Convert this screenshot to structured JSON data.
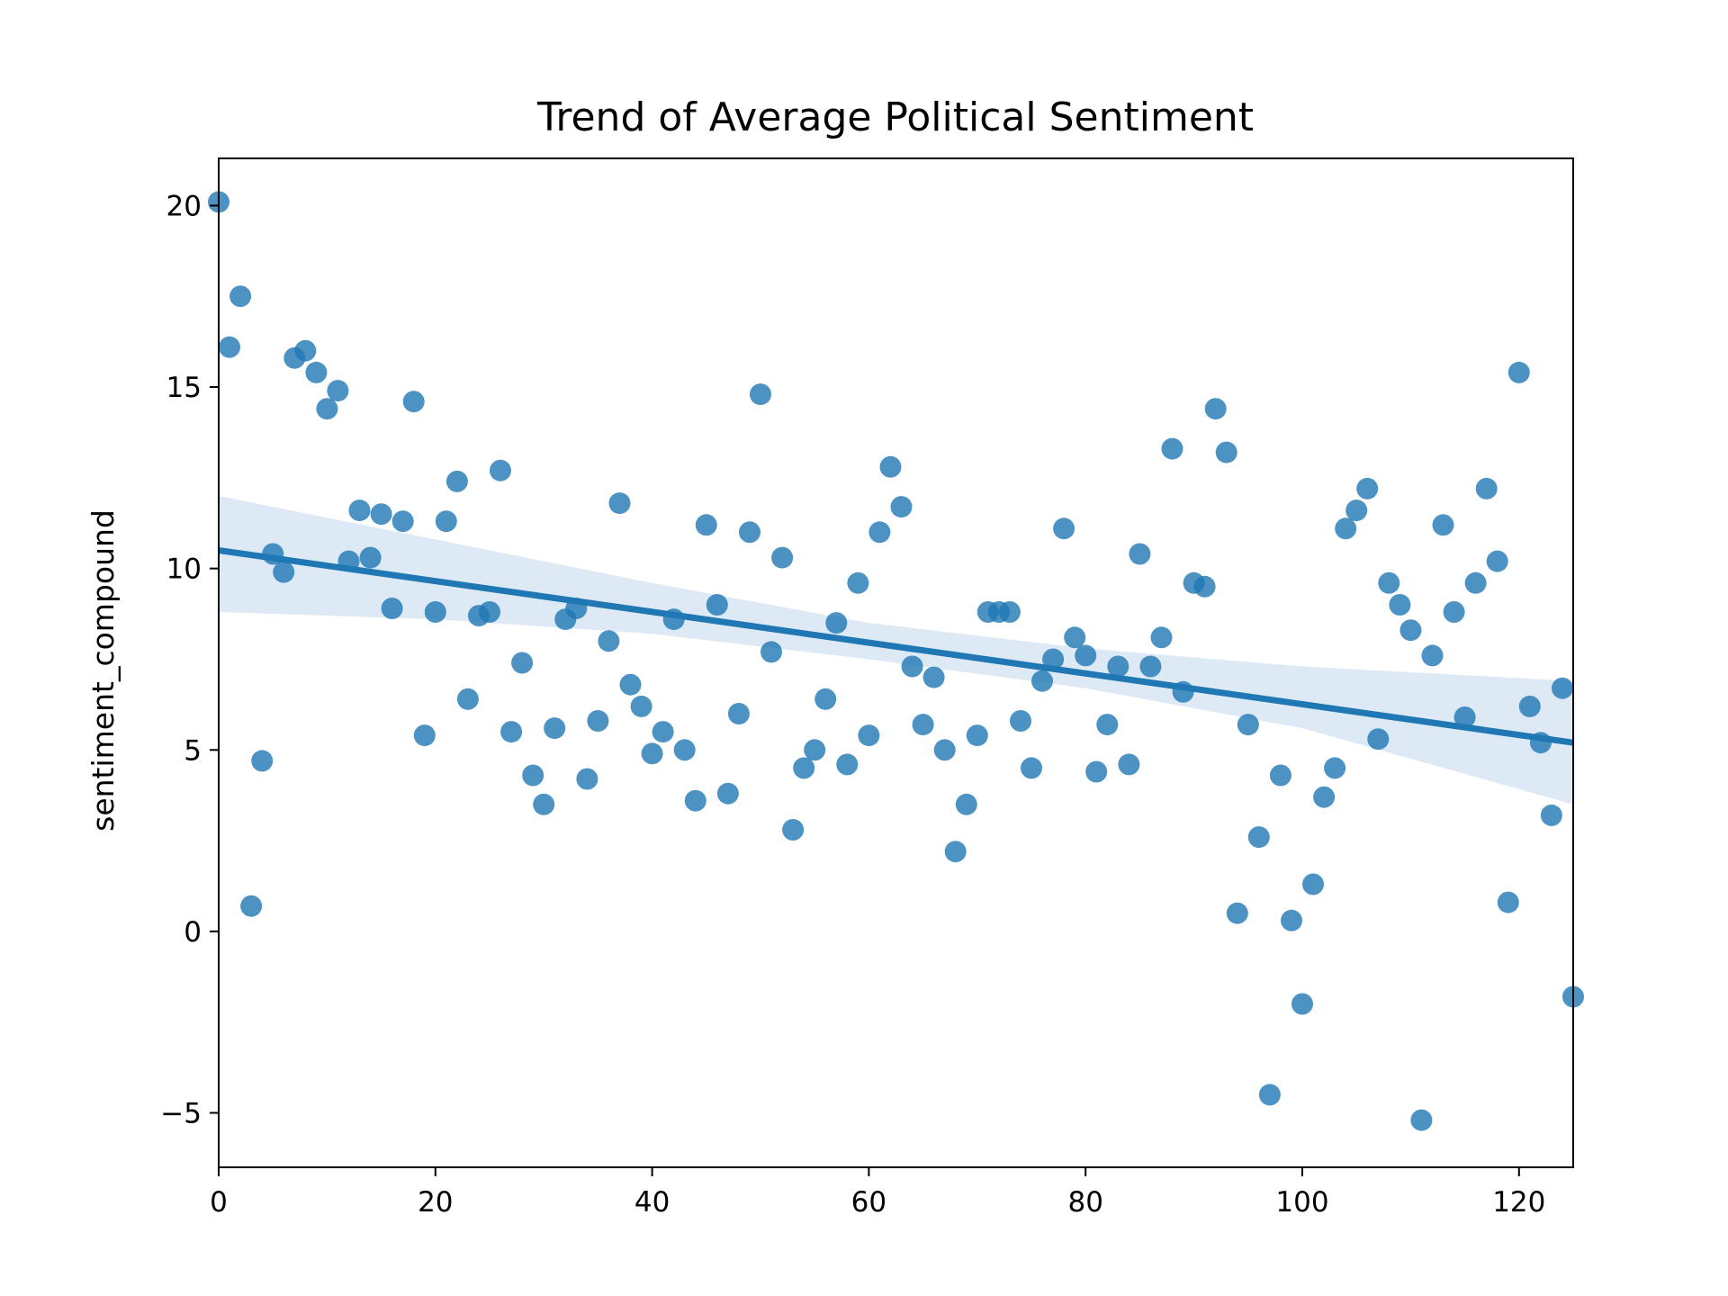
{
  "chart_data": {
    "type": "scatter",
    "title": "Trend of Average Political Sentiment",
    "xlabel": "",
    "ylabel": "sentiment_compound",
    "xlim": [
      0,
      125
    ],
    "ylim": [
      -6.5,
      21.3
    ],
    "xticks": [
      0,
      20,
      40,
      60,
      80,
      100,
      120
    ],
    "yticks": [
      -5,
      0,
      5,
      10,
      15,
      20
    ],
    "ytick_labels": [
      "−5",
      "0",
      "5",
      "10",
      "15",
      "20"
    ],
    "grid": false,
    "legend": "none",
    "colors": {
      "points": "#1f77b4",
      "line": "#1f77b4",
      "band": "#c6dbef"
    },
    "regression": {
      "x": [
        0,
        125
      ],
      "y": [
        10.5,
        5.2
      ]
    },
    "confidence_band": {
      "x": [
        0,
        20,
        40,
        60,
        80,
        100,
        125
      ],
      "upper": [
        12.0,
        10.8,
        9.6,
        8.5,
        7.8,
        7.3,
        6.9
      ],
      "lower": [
        8.8,
        8.6,
        8.2,
        7.5,
        6.7,
        5.6,
        3.5
      ]
    },
    "points": {
      "x": [
        0,
        1,
        2,
        3,
        4,
        5,
        6,
        7,
        8,
        9,
        10,
        11,
        12,
        13,
        14,
        15,
        16,
        17,
        18,
        19,
        20,
        21,
        22,
        23,
        24,
        25,
        26,
        27,
        28,
        29,
        30,
        31,
        32,
        33,
        34,
        35,
        36,
        37,
        38,
        39,
        40,
        41,
        42,
        43,
        44,
        45,
        46,
        47,
        48,
        49,
        50,
        51,
        52,
        53,
        54,
        55,
        56,
        57,
        58,
        59,
        60,
        61,
        62,
        63,
        64,
        65,
        66,
        67,
        68,
        69,
        70,
        71,
        72,
        73,
        74,
        75,
        76,
        77,
        78,
        79,
        80,
        81,
        82,
        83,
        84,
        85,
        86,
        87,
        88,
        89,
        90,
        91,
        92,
        93,
        94,
        95,
        96,
        97,
        98,
        99,
        100,
        101,
        102,
        103,
        104,
        105,
        106,
        107,
        108,
        109,
        110,
        111,
        112,
        113,
        114,
        115,
        116,
        117,
        118,
        119,
        120,
        121,
        122,
        123,
        124,
        125
      ],
      "y": [
        20.1,
        16.1,
        17.5,
        0.7,
        4.7,
        10.4,
        9.9,
        15.8,
        16.0,
        15.4,
        14.4,
        14.9,
        10.2,
        11.6,
        10.3,
        11.5,
        8.9,
        11.3,
        14.6,
        5.4,
        8.8,
        11.3,
        12.4,
        6.4,
        8.7,
        8.8,
        12.7,
        5.5,
        7.4,
        4.3,
        3.5,
        5.6,
        8.6,
        8.9,
        4.2,
        5.8,
        8.0,
        11.8,
        6.8,
        6.2,
        4.9,
        5.5,
        8.6,
        5.0,
        3.6,
        11.2,
        9.0,
        3.8,
        6.0,
        11.0,
        14.8,
        7.7,
        10.3,
        2.8,
        4.5,
        5.0,
        6.4,
        8.5,
        4.6,
        9.6,
        5.4,
        11.0,
        12.8,
        11.7,
        7.3,
        5.7,
        7.0,
        5.0,
        2.2,
        3.5,
        5.4,
        8.8,
        8.8,
        8.8,
        5.8,
        4.5,
        6.9,
        7.5,
        11.1,
        8.1,
        7.6,
        4.4,
        5.7,
        7.3,
        4.6,
        10.4,
        7.3,
        8.1,
        13.3,
        6.6,
        9.6,
        9.5,
        14.4,
        13.2,
        0.5,
        5.7,
        2.6,
        -4.5,
        4.3,
        0.3,
        -2.0,
        1.3,
        3.7,
        4.5,
        11.1,
        11.6,
        12.2,
        5.3,
        9.6,
        9.0,
        8.3,
        -5.2,
        7.6,
        11.2,
        8.8,
        5.9,
        9.6,
        12.2,
        10.2,
        0.8,
        15.4,
        6.2,
        5.2,
        3.2,
        6.7,
        -1.8
      ]
    }
  }
}
